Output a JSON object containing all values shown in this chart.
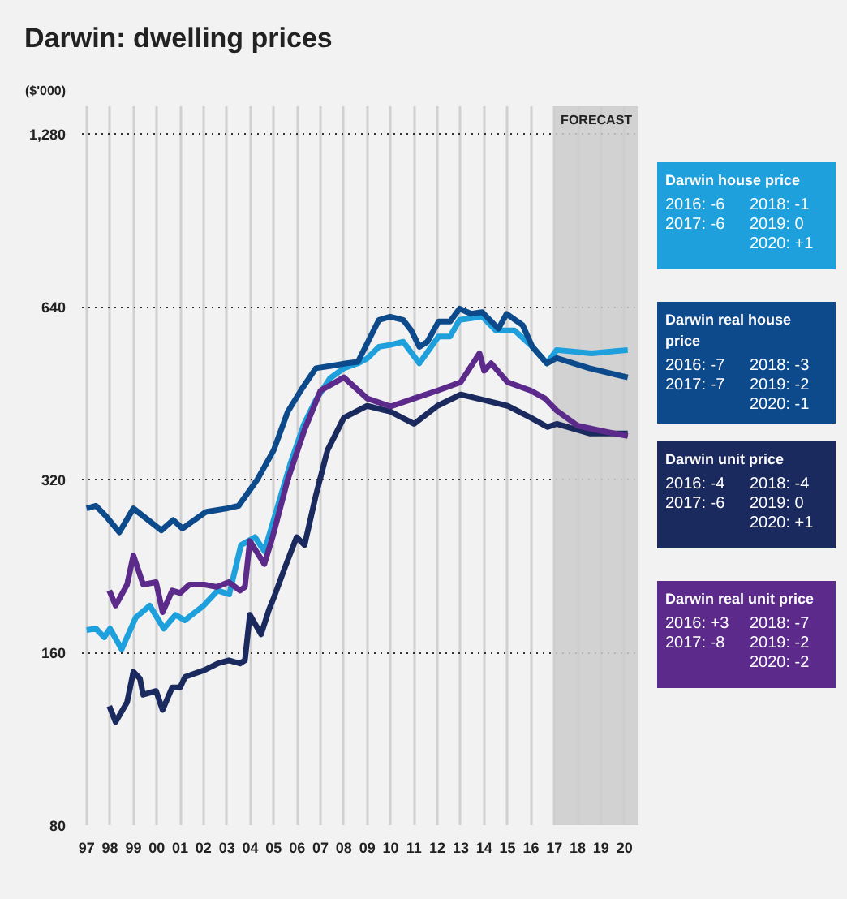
{
  "chart_data": {
    "type": "line",
    "title": "Darwin: dwelling prices",
    "ylabel": "($'000)",
    "log": "y",
    "grid": true,
    "marker": "none",
    "line_style": "solid",
    "xlim": [
      1996.8,
      2020.6
    ],
    "ylim": [
      80,
      1430
    ],
    "xticks": [
      {
        "value": 1997,
        "label": "97"
      },
      {
        "value": 1998,
        "label": "98"
      },
      {
        "value": 1999,
        "label": "99"
      },
      {
        "value": 2000,
        "label": "00"
      },
      {
        "value": 2001,
        "label": "01"
      },
      {
        "value": 2002,
        "label": "02"
      },
      {
        "value": 2003,
        "label": "03"
      },
      {
        "value": 2004,
        "label": "04"
      },
      {
        "value": 2005,
        "label": "05"
      },
      {
        "value": 2006,
        "label": "06"
      },
      {
        "value": 2007,
        "label": "07"
      },
      {
        "value": 2008,
        "label": "08"
      },
      {
        "value": 2009,
        "label": "09"
      },
      {
        "value": 2010,
        "label": "10"
      },
      {
        "value": 2011,
        "label": "11"
      },
      {
        "value": 2012,
        "label": "12"
      },
      {
        "value": 2013,
        "label": "13"
      },
      {
        "value": 2014,
        "label": "14"
      },
      {
        "value": 2015,
        "label": "15"
      },
      {
        "value": 2016,
        "label": "16"
      },
      {
        "value": 2017,
        "label": "17"
      },
      {
        "value": 2018,
        "label": "18"
      },
      {
        "value": 2019,
        "label": "19"
      },
      {
        "value": 2020,
        "label": "20"
      }
    ],
    "yticks": [
      80,
      160,
      320,
      640,
      {
        "value": 1280,
        "label": "1,280"
      }
    ],
    "bands": [
      {
        "axis": "x",
        "from": 2017,
        "to": 2020.6,
        "label": "FORECAST",
        "color": "#cccccc"
      }
    ],
    "series": [
      {
        "name": "Darwin house price",
        "color": "#1ea0dc",
        "x": [
          1997.0,
          1997.4,
          1997.75,
          1998.0,
          1998.5,
          1999.1,
          1999.7,
          2000.3,
          2000.8,
          2001.2,
          2002.0,
          2002.6,
          2003.1,
          2003.6,
          2004.2,
          2004.6,
          2005.2,
          2005.7,
          2006.3,
          2006.8,
          2007.4,
          2008.0,
          2008.6,
          2009.0,
          2009.5,
          2009.98,
          2010.54,
          2011.23,
          2012.05,
          2012.54,
          2012.95,
          2013.92,
          2014.5,
          2015.3,
          2016.06,
          2016.68,
          2017.1,
          2018.6,
          2020.14
        ],
        "values": [
          175,
          176,
          170,
          176,
          162,
          184,
          193,
          176,
          186,
          182,
          193,
          205,
          202,
          246,
          254,
          240,
          290,
          340,
          400,
          440,
          480,
          500,
          510,
          520,
          545,
          549,
          556,
          510,
          568,
          568,
          607,
          615,
          582,
          582,
          545,
          510,
          538,
          531,
          538
        ]
      },
      {
        "name": "Darwin real house price",
        "color": "#0d4a8c",
        "x": [
          1997.0,
          1997.4,
          1997.8,
          1998.4,
          1999.0,
          2000.2,
          2000.7,
          2001.1,
          2002.1,
          2003.0,
          2003.5,
          2004.3,
          2005.0,
          2005.6,
          2006.2,
          2006.8,
          2007.5,
          2008.12,
          2008.6,
          2009.5,
          2009.98,
          2010.54,
          2010.88,
          2011.23,
          2011.57,
          2012.05,
          2012.54,
          2012.95,
          2013.44,
          2013.92,
          2014.61,
          2014.96,
          2015.65,
          2016.06,
          2016.68,
          2017.1,
          2018.5,
          2020.14
        ],
        "values": [
          285,
          288,
          277,
          259,
          285,
          261,
          272,
          263,
          281,
          285,
          288,
          320,
          360,
          420,
          460,
          500,
          505,
          510,
          513,
          607,
          615,
          607,
          582,
          545,
          556,
          603,
          603,
          635,
          622,
          626,
          586,
          622,
          594,
          545,
          510,
          521,
          500,
          482
        ]
      },
      {
        "name": "Darwin unit price",
        "color": "#1b2a5e",
        "x": [
          1997.97,
          1998.24,
          1998.73,
          1999.0,
          1999.28,
          1999.42,
          1999.97,
          2000.25,
          2000.66,
          2001.0,
          2001.21,
          2002.04,
          2002.6,
          2003.08,
          2003.56,
          2003.77,
          2003.98,
          2004.46,
          2004.8,
          2005.0,
          2005.5,
          2005.98,
          2006.32,
          2006.8,
          2007.3,
          2008.0,
          2009.0,
          2010.0,
          2011.0,
          2012.0,
          2013.0,
          2014.0,
          2015.0,
          2016.0,
          2016.7,
          2017.1,
          2018.5,
          2020.14
        ],
        "values": [
          129,
          121,
          131,
          148,
          144,
          135,
          137,
          127,
          139,
          139,
          145,
          149,
          153,
          155,
          153,
          155,
          186,
          172,
          190,
          199,
          226,
          254,
          246,
          300,
          360,
          410,
          430,
          420,
          400,
          430,
          450,
          440,
          430,
          410,
          395,
          400,
          385,
          385
        ]
      },
      {
        "name": "Darwin real unit price",
        "color": "#5b2a8a",
        "x": [
          1997.97,
          1998.24,
          1998.73,
          1999.0,
          1999.42,
          1999.97,
          2000.25,
          2000.66,
          2001.0,
          2001.4,
          2002.04,
          2002.55,
          2003.08,
          2003.56,
          2003.77,
          2003.98,
          2004.6,
          2004.95,
          2005.6,
          2006.3,
          2007.0,
          2008.0,
          2009.0,
          2010.0,
          2011.0,
          2012.0,
          2013.0,
          2013.8,
          2014.0,
          2014.3,
          2015.0,
          2016.0,
          2016.6,
          2017.1,
          2018.0,
          2019.0,
          2020.14
        ],
        "values": [
          205,
          193,
          210,
          236,
          210,
          212,
          188,
          205,
          203,
          210,
          210,
          208,
          212,
          205,
          208,
          250,
          228,
          254,
          320,
          389,
          457,
          482,
          443,
          429,
          443,
          457,
          473,
          531,
          495,
          510,
          473,
          457,
          443,
          422,
          397,
          389,
          381
        ]
      }
    ],
    "annotations": [
      "2016: -6",
      "2017: -6",
      "2018: -1",
      "2019: 0",
      "2020: +1",
      "2016: -7",
      "2017: -7",
      "2018: -3",
      "2019: -2",
      "2020: -1",
      "2016: -4",
      "2017: -6",
      "2018: -4",
      "2019: 0",
      "2020: +1",
      "2016: +3",
      "2017: -8",
      "2018: -7",
      "2019: -2",
      "2020: -2"
    ]
  }
}
